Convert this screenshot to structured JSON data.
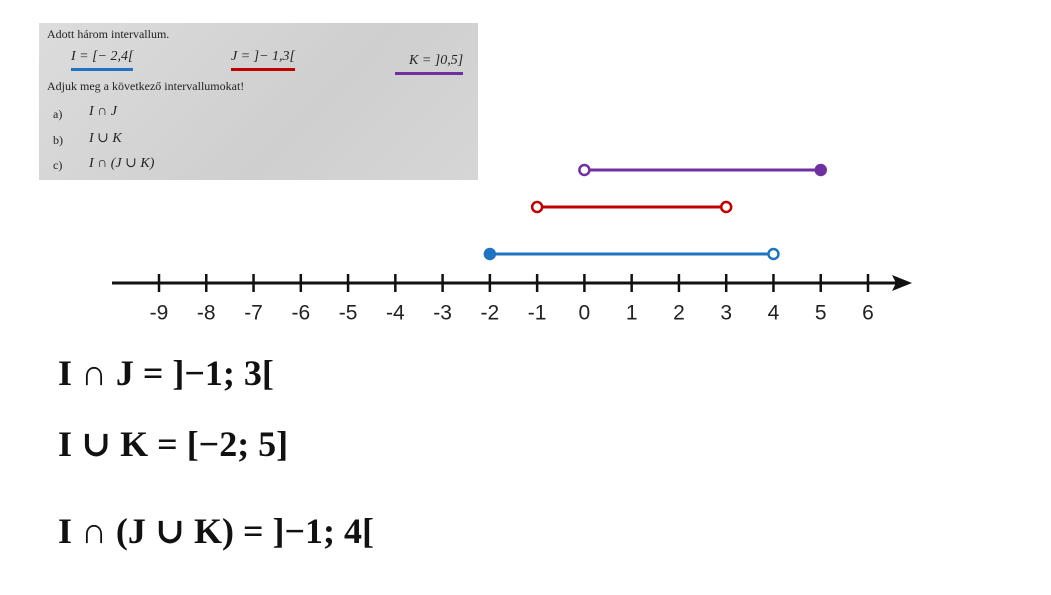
{
  "problem": {
    "intro": "Adott három intervallum.",
    "intervals": [
      {
        "text": "I = [− 2,4[",
        "color": "#1f74c2"
      },
      {
        "text": "J = ]− 1,3[",
        "color": "#c00000"
      },
      {
        "text": "K = ]0,5]",
        "color": "#7030a0"
      }
    ],
    "question": "Adjuk meg a következő intervallumokat!",
    "items": [
      {
        "letter": "a)",
        "expr": "I ∩ J"
      },
      {
        "letter": "b)",
        "expr": "I ∪ K"
      },
      {
        "letter": "c)",
        "expr": "I ∩ (J ∪ K)"
      }
    ]
  },
  "number_line": {
    "ticks": [
      -9,
      -8,
      -7,
      -6,
      -5,
      -4,
      -3,
      -2,
      -1,
      0,
      1,
      2,
      3,
      4,
      5,
      6
    ],
    "intervals": [
      {
        "from": -2,
        "to": 4,
        "from_closed": true,
        "to_closed": false,
        "color": "#1f74c2"
      },
      {
        "from": -1,
        "to": 3,
        "from_closed": false,
        "to_closed": false,
        "color": "#c00000"
      },
      {
        "from": 0,
        "to": 5,
        "from_closed": false,
        "to_closed": true,
        "color": "#7030a0"
      }
    ]
  },
  "answers": [
    "I ∩ J = ]−1; 3[",
    "I ∪ K = [−2; 5]",
    "I ∩ (J ∪ K) = ]−1; 4["
  ]
}
